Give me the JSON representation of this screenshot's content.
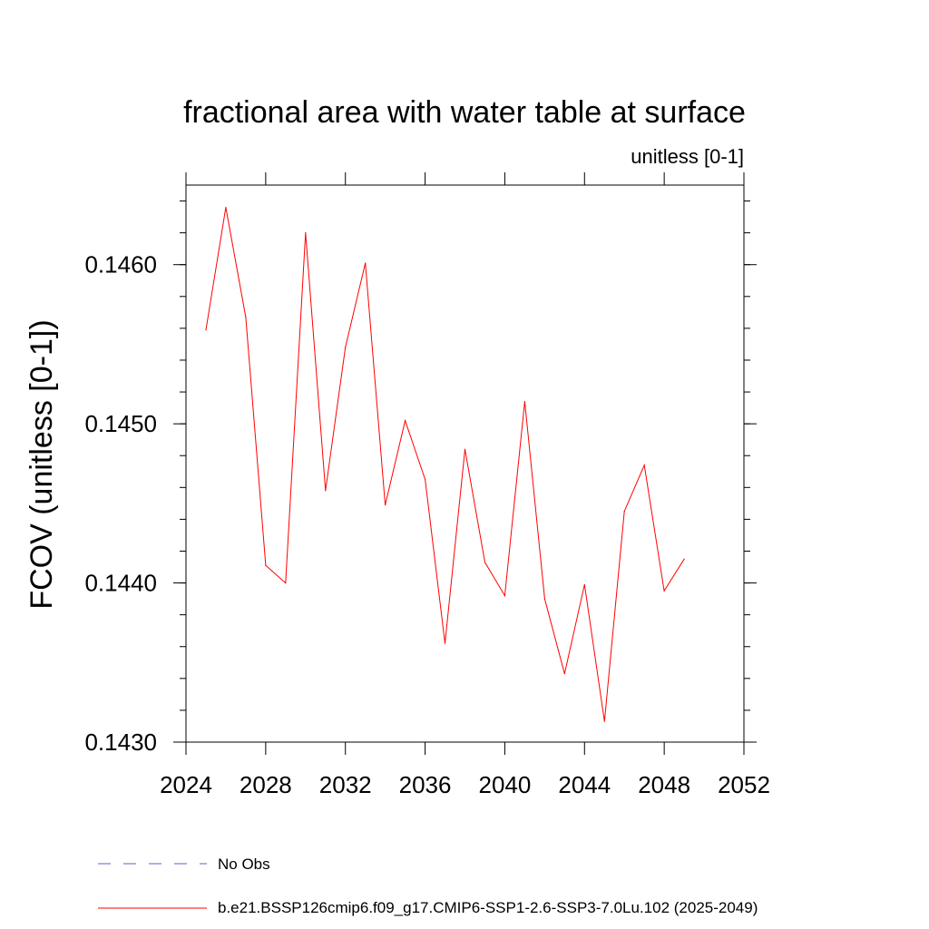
{
  "chart_data": {
    "type": "line",
    "title": "fractional area with water table at surface",
    "subtitle": "unitless [0-1]",
    "xlabel": "",
    "ylabel": "FCOV  (unitless [0-1])",
    "xlim": [
      2024,
      2052
    ],
    "ylim": [
      0.143,
      0.1465
    ],
    "x_ticks": [
      "2024",
      "2028",
      "2032",
      "2036",
      "2040",
      "2044",
      "2048",
      "2052"
    ],
    "y_ticks": [
      "0.1430",
      "0.1440",
      "0.1450",
      "0.1460"
    ],
    "grid": false,
    "legend_position": "bottom",
    "series": [
      {
        "name": "No Obs",
        "style": "dashed",
        "color": "#6a5acd",
        "x": [],
        "values": []
      },
      {
        "name": "b.e21.BSSP126cmip6.f09_g17.CMIP6-SSP1-2.6-SSP3-7.0Lu.102 (2025-2049)",
        "style": "solid",
        "color": "#ff0000",
        "x": [
          2025,
          2026,
          2027,
          2028,
          2029,
          2030,
          2031,
          2032,
          2033,
          2034,
          2035,
          2036,
          2037,
          2038,
          2039,
          2040,
          2041,
          2042,
          2043,
          2044,
          2045,
          2046,
          2047,
          2048,
          2049
        ],
        "values": [
          0.14559,
          0.14636,
          0.14567,
          0.14411,
          0.144,
          0.1462,
          0.14458,
          0.14548,
          0.14601,
          0.14449,
          0.14502,
          0.14465,
          0.14362,
          0.14484,
          0.14413,
          0.14392,
          0.14514,
          0.1439,
          0.14343,
          0.14399,
          0.14313,
          0.14445,
          0.14474,
          0.14395,
          0.14415
        ]
      }
    ]
  }
}
